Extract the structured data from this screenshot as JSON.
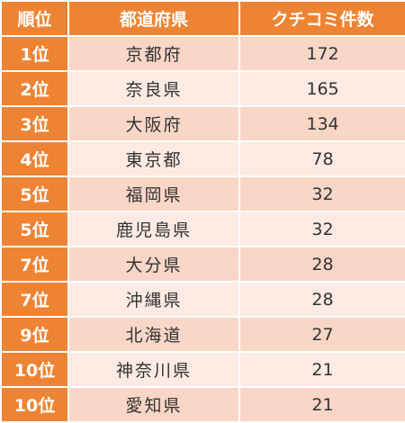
{
  "headers": {
    "rank": "順位",
    "prefecture": "都道府県",
    "count": "クチコミ件数"
  },
  "colors": {
    "header_bg": "#ee8433",
    "rank_bg": "#ee8433",
    "row_odd_bg": "#f9d6c6",
    "row_even_bg": "#fceae3"
  },
  "rows": [
    {
      "rank": "1位",
      "prefecture": "京都府",
      "count": "172"
    },
    {
      "rank": "2位",
      "prefecture": "奈良県",
      "count": "165"
    },
    {
      "rank": "3位",
      "prefecture": "大阪府",
      "count": "134"
    },
    {
      "rank": "4位",
      "prefecture": "東京都",
      "count": "78"
    },
    {
      "rank": "5位",
      "prefecture": "福岡県",
      "count": "32"
    },
    {
      "rank": "5位",
      "prefecture": "鹿児島県",
      "count": "32"
    },
    {
      "rank": "7位",
      "prefecture": "大分県",
      "count": "28"
    },
    {
      "rank": "7位",
      "prefecture": "沖縄県",
      "count": "28"
    },
    {
      "rank": "9位",
      "prefecture": "北海道",
      "count": "27"
    },
    {
      "rank": "10位",
      "prefecture": "神奈川県",
      "count": "21"
    },
    {
      "rank": "10位",
      "prefecture": "愛知県",
      "count": "21"
    }
  ]
}
